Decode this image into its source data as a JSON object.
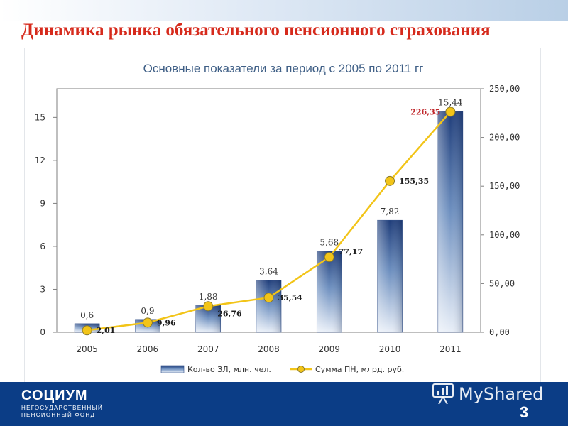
{
  "slide": {
    "title": "Динамика рынка обязательного пенсионного страхования",
    "page_number": "3"
  },
  "footer": {
    "logo_name": "СОЦИУМ",
    "logo_line1": "НЕГОСУДАРСТВЕННЫЙ",
    "logo_line2": "ПЕНСИОННЫЙ ФОНД",
    "watermark": "MyShared"
  },
  "colors": {
    "title": "#d62a1c",
    "footer": "#0b3d86",
    "bar_dark": "#1f3d7a",
    "bar_light": "#e9eff8",
    "line": "#f2c418",
    "marker": "#f2c418",
    "last_line_label": "#c0282c"
  },
  "chart_data": {
    "type": "bar",
    "title": "Основные показатели за период с 2005 по 2011 гг",
    "categories": [
      "2005",
      "2006",
      "2007",
      "2008",
      "2009",
      "2010",
      "2011"
    ],
    "y_left": {
      "min": 0,
      "max": 17,
      "ticks": [
        "0",
        "3",
        "6",
        "9",
        "12",
        "15"
      ]
    },
    "y_right": {
      "min": 0,
      "max": 250,
      "ticks": [
        "0,00",
        "50,00",
        "100,00",
        "150,00",
        "200,00",
        "250,00"
      ]
    },
    "grid": false,
    "legend_position": "bottom",
    "series": [
      {
        "name": "Кол-во ЗЛ, млн. чел.",
        "type": "bar",
        "axis": "left",
        "values": [
          0.6,
          0.9,
          1.88,
          3.64,
          5.68,
          7.82,
          15.44
        ],
        "labels": [
          "0,6",
          "0,9",
          "1,88",
          "3,64",
          "5,68",
          "7,82",
          "15,44"
        ]
      },
      {
        "name": "Сумма ПН, млрд. руб.",
        "type": "line",
        "axis": "right",
        "values": [
          2.01,
          9.96,
          26.76,
          35.54,
          77.17,
          155.35,
          226.35
        ],
        "labels": [
          "2,01",
          "9,96",
          "26,76",
          "35,54",
          "77,17",
          "155,35",
          "226,35"
        ]
      }
    ]
  }
}
